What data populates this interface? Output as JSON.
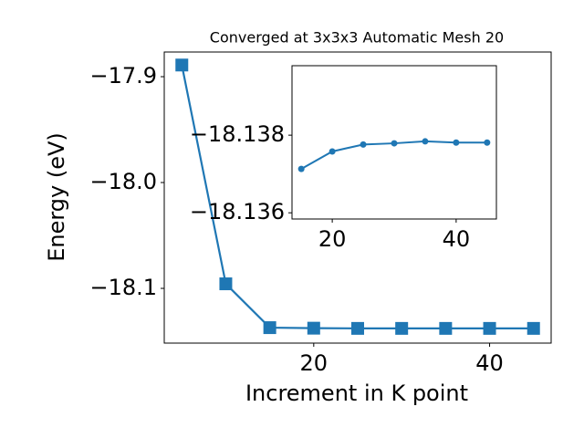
{
  "chart_data": [
    {
      "type": "line",
      "title": "Converged at 3x3x3 Automatic Mesh 20",
      "x_label": "Increment in K point",
      "y_label": "Energy (eV)",
      "x": [
        5,
        10,
        15,
        20,
        25,
        30,
        35,
        40,
        45
      ],
      "series": [
        {
          "color": "#1f77b4",
          "marker": "square",
          "values": [
            -17.889,
            -18.0957,
            -18.1371,
            -18.1376,
            -18.1378,
            -18.1378,
            -18.1378,
            -18.1378,
            -18.1378
          ]
        }
      ],
      "xlim": [
        3,
        47
      ],
      "ylim": [
        -18.1517,
        -17.8767
      ],
      "xticks": [
        20,
        40
      ],
      "yticks": [
        {
          "value": -17.9,
          "label": "−17.9"
        },
        {
          "value": -18.0,
          "label": "−18.0"
        },
        {
          "value": -18.1,
          "label": "−18.1"
        }
      ]
    },
    {
      "type": "line",
      "x": [
        15,
        20,
        25,
        30,
        35,
        40,
        45
      ],
      "series": [
        {
          "color": "#1f77b4",
          "marker": "circle",
          "values": [
            -18.13713,
            -18.13758,
            -18.13776,
            -18.13779,
            -18.13784,
            -18.13781,
            -18.13781
          ]
        }
      ],
      "xlim": [
        13.5,
        46.5
      ],
      "ylim": [
        -18.13584,
        -18.13979
      ],
      "xticks": [
        20,
        40
      ],
      "yticks": [
        {
          "value": -18.138,
          "label": "−18.138"
        },
        {
          "value": -18.136,
          "label": "−18.136"
        }
      ]
    }
  ]
}
